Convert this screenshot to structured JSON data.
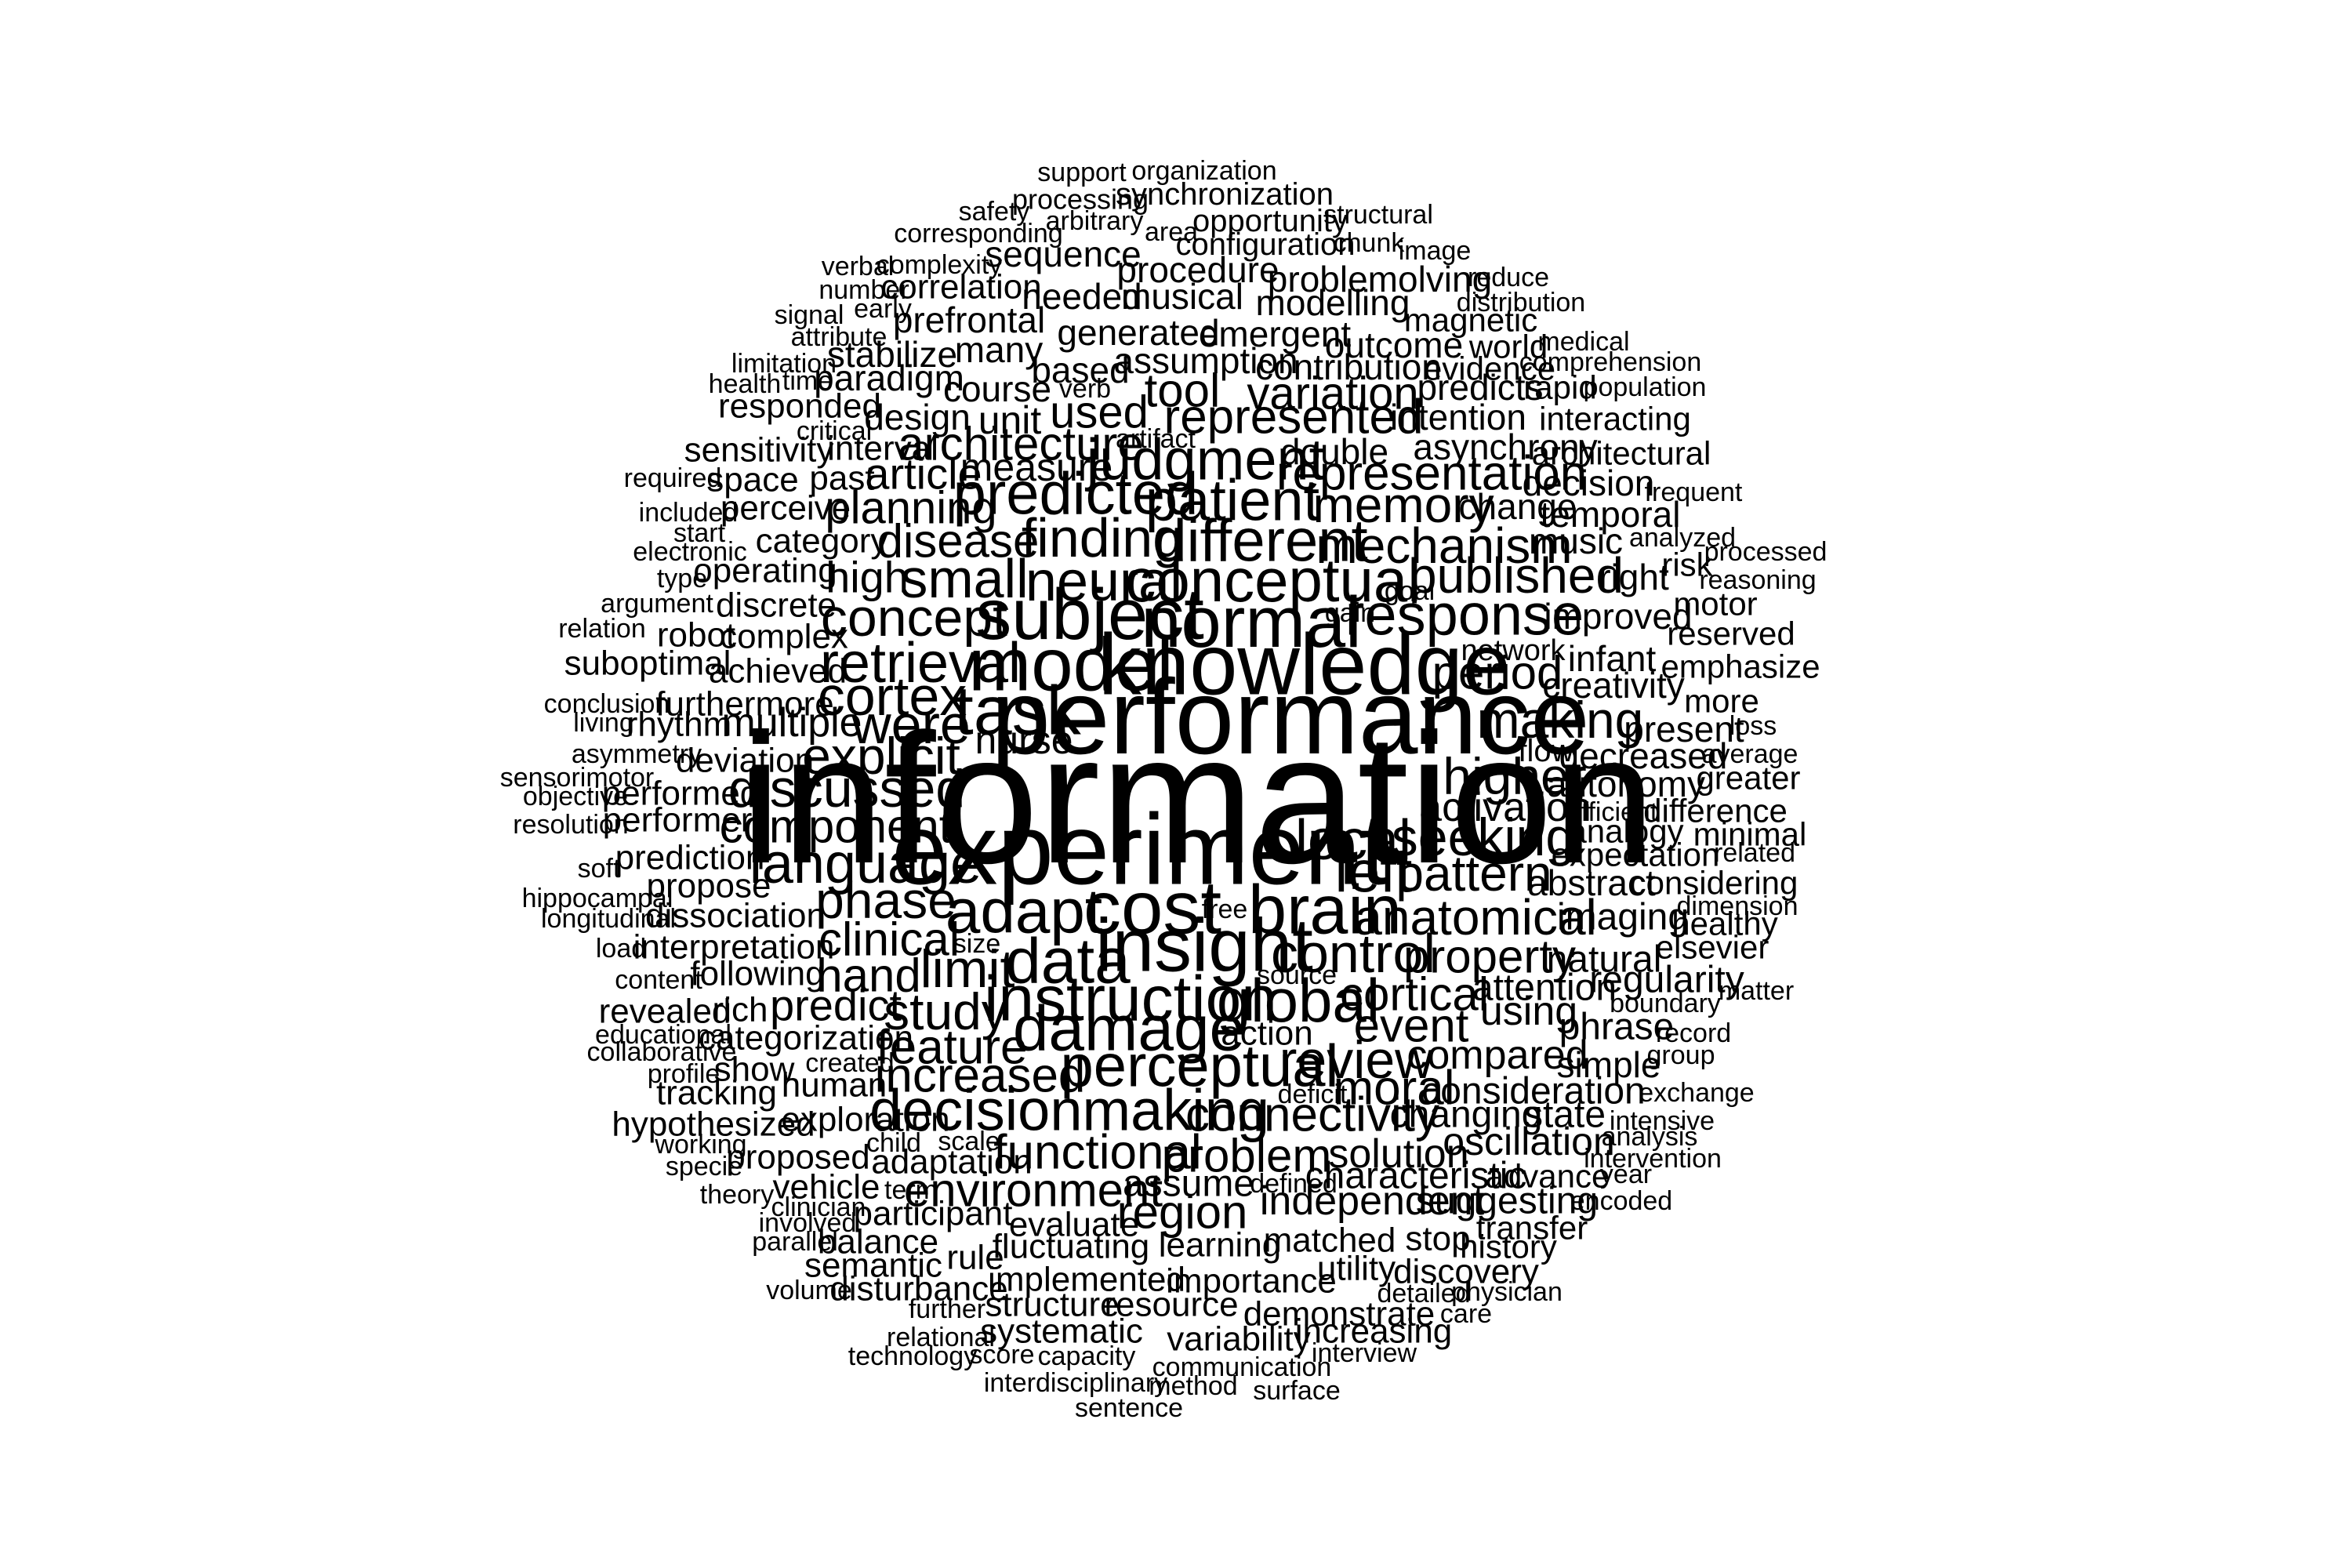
{
  "text_color": "#000000",
  "background": "#ffffff",
  "words": [
    {
      "text": "information",
      "weight": 9.5
    },
    {
      "text": "performance",
      "weight": 6.5
    },
    {
      "text": "experiment",
      "weight": 6.2
    },
    {
      "text": "knowledge",
      "weight": 5.4
    },
    {
      "text": "model",
      "weight": 4.5
    },
    {
      "text": "insight",
      "weight": 4.4
    },
    {
      "text": "cost",
      "weight": 4.4
    },
    {
      "text": "subject",
      "weight": 4.3
    },
    {
      "text": "normal",
      "weight": 4.3
    },
    {
      "text": "task",
      "weight": 4.2
    },
    {
      "text": "brain",
      "weight": 4.2
    },
    {
      "text": "damage",
      "weight": 3.9
    },
    {
      "text": "instruction",
      "weight": 3.9
    },
    {
      "text": "data",
      "weight": 3.9
    },
    {
      "text": "adapt",
      "weight": 3.8
    },
    {
      "text": "conceptual",
      "weight": 3.7
    },
    {
      "text": "perceptual",
      "weight": 3.7
    },
    {
      "text": "global",
      "weight": 3.7
    },
    {
      "text": "decisionmaking",
      "weight": 3.6
    },
    {
      "text": "different",
      "weight": 3.6
    },
    {
      "text": "predicted",
      "weight": 3.6
    },
    {
      "text": "judgment",
      "weight": 3.6
    },
    {
      "text": "response",
      "weight": 3.6
    },
    {
      "text": "retrieval",
      "weight": 3.5
    },
    {
      "text": "language",
      "weight": 3.5
    },
    {
      "text": "left",
      "weight": 3.5
    },
    {
      "text": "local",
      "weight": 3.5
    },
    {
      "text": "patient",
      "weight": 3.5
    },
    {
      "text": "neural",
      "weight": 3.5
    },
    {
      "text": "finding",
      "weight": 3.4
    },
    {
      "text": "small",
      "weight": 3.4
    },
    {
      "text": "control",
      "weight": 3.4
    },
    {
      "text": "cortex",
      "weight": 3.4
    },
    {
      "text": "were",
      "weight": 3.4
    },
    {
      "text": "concept",
      "weight": 3.3
    },
    {
      "text": "discussed",
      "weight": 3.3
    },
    {
      "text": "seeking",
      "weight": 3.3
    },
    {
      "text": "limit",
      "weight": 3.3
    },
    {
      "text": "review",
      "weight": 3.3
    },
    {
      "text": "higher",
      "weight": 3.2
    },
    {
      "text": "explicit",
      "weight": 3.2
    },
    {
      "text": "phase",
      "weight": 3.2
    },
    {
      "text": "study",
      "weight": 3.2
    },
    {
      "text": "making",
      "weight": 3.2
    },
    {
      "text": "mechanism",
      "weight": 3.1
    },
    {
      "text": "memory",
      "weight": 3.1
    },
    {
      "text": "published",
      "weight": 3.1
    },
    {
      "text": "pattern",
      "weight": 3.1
    },
    {
      "text": "anatomical",
      "weight": 3.1
    },
    {
      "text": "connectivity",
      "weight": 3.1
    },
    {
      "text": "moral",
      "weight": 3.1
    },
    {
      "text": "functional",
      "weight": 3.1
    },
    {
      "text": "feature",
      "weight": 3.1
    },
    {
      "text": "increased",
      "weight": 3.1
    },
    {
      "text": "represented",
      "weight": 3.0
    },
    {
      "text": "representation",
      "weight": 3.0
    },
    {
      "text": "clinical",
      "weight": 3.0
    },
    {
      "text": "hand",
      "weight": 3.0
    },
    {
      "text": "period",
      "weight": 3.0
    },
    {
      "text": "disease",
      "weight": 3.0
    },
    {
      "text": "architecture",
      "weight": 3.0
    },
    {
      "text": "tool",
      "weight": 3.0
    },
    {
      "text": "component",
      "weight": 3.0
    },
    {
      "text": "cortical",
      "weight": 3.0
    },
    {
      "text": "event",
      "weight": 3.0
    },
    {
      "text": "property",
      "weight": 3.0
    },
    {
      "text": "problem",
      "weight": 3.0
    },
    {
      "text": "environment",
      "weight": 3.0
    },
    {
      "text": "region",
      "weight": 3.0
    },
    {
      "text": "variation",
      "weight": 3.0
    },
    {
      "text": "used",
      "weight": 3.0
    },
    {
      "text": "planning",
      "weight": 3.0
    },
    {
      "text": "predict",
      "weight": 2.9
    },
    {
      "text": "article",
      "weight": 2.9
    },
    {
      "text": "high",
      "weight": 2.9
    },
    {
      "text": "multiple",
      "weight": 2.8
    },
    {
      "text": "nurse",
      "weight": 2.8
    },
    {
      "text": "activation",
      "weight": 2.8
    },
    {
      "text": "compared",
      "weight": 2.8
    },
    {
      "text": "solution",
      "weight": 2.8
    },
    {
      "text": "independent",
      "weight": 2.8
    },
    {
      "text": "using",
      "weight": 2.8
    },
    {
      "text": "oscillation",
      "weight": 2.7
    },
    {
      "text": "measure",
      "weight": 2.7
    },
    {
      "text": "unit",
      "weight": 2.7
    },
    {
      "text": "attention",
      "weight": 2.7
    },
    {
      "text": "consideration",
      "weight": 2.7
    },
    {
      "text": "changing",
      "weight": 2.7
    },
    {
      "text": "state",
      "weight": 2.7
    },
    {
      "text": "characteristic",
      "weight": 2.7
    },
    {
      "text": "suggesting",
      "weight": 2.7
    },
    {
      "text": "assume",
      "weight": 2.7
    },
    {
      "text": "imaging",
      "weight": 2.7
    },
    {
      "text": "natural",
      "weight": 2.7
    },
    {
      "text": "regularity",
      "weight": 2.7
    },
    {
      "text": "phrase",
      "weight": 2.7
    },
    {
      "text": "simple",
      "weight": 2.6
    },
    {
      "text": "abstract",
      "weight": 2.6
    },
    {
      "text": "autonomy",
      "weight": 2.6
    },
    {
      "text": "decreased",
      "weight": 2.6
    },
    {
      "text": "present",
      "weight": 2.6
    },
    {
      "text": "improved",
      "weight": 2.6
    },
    {
      "text": "infant",
      "weight": 2.6
    },
    {
      "text": "creativity",
      "weight": 2.6
    },
    {
      "text": "music",
      "weight": 2.6
    },
    {
      "text": "right",
      "weight": 2.6
    },
    {
      "text": "temporal",
      "weight": 2.6
    },
    {
      "text": "change",
      "weight": 2.6
    },
    {
      "text": "decision",
      "weight": 2.6
    },
    {
      "text": "asynchrony",
      "weight": 2.6
    },
    {
      "text": "double",
      "weight": 2.6
    },
    {
      "text": "intention",
      "weight": 2.6
    },
    {
      "text": "predicts",
      "weight": 2.6
    },
    {
      "text": "outcome",
      "weight": 2.6
    },
    {
      "text": "contribution",
      "weight": 2.6
    },
    {
      "text": "assumption",
      "weight": 2.6
    },
    {
      "text": "generated",
      "weight": 2.6
    },
    {
      "text": "emergent",
      "weight": 2.6
    },
    {
      "text": "modelling",
      "weight": 2.6
    },
    {
      "text": "problemolving",
      "weight": 2.6
    },
    {
      "text": "procedure",
      "weight": 2.6
    },
    {
      "text": "musical",
      "weight": 2.6
    },
    {
      "text": "needed",
      "weight": 2.6
    },
    {
      "text": "sequence",
      "weight": 2.6
    },
    {
      "text": "based",
      "weight": 2.6
    },
    {
      "text": "many",
      "weight": 2.6
    },
    {
      "text": "course",
      "weight": 2.6
    },
    {
      "text": "design",
      "weight": 2.6
    },
    {
      "text": "paradigm",
      "weight": 2.6
    },
    {
      "text": "stabilize",
      "weight": 2.6
    },
    {
      "text": "prefrontal",
      "weight": 2.6
    },
    {
      "text": "correlation",
      "weight": 2.5
    },
    {
      "text": "interval",
      "weight": 2.5
    },
    {
      "text": "past",
      "weight": 2.5
    },
    {
      "text": "space",
      "weight": 2.5
    },
    {
      "text": "sensitivity",
      "weight": 2.5
    },
    {
      "text": "responded",
      "weight": 2.5
    },
    {
      "text": "perceive",
      "weight": 2.5
    },
    {
      "text": "category",
      "weight": 2.5
    },
    {
      "text": "operating",
      "weight": 2.5
    },
    {
      "text": "discrete",
      "weight": 2.5
    },
    {
      "text": "complex",
      "weight": 2.5
    },
    {
      "text": "achieved",
      "weight": 2.5
    },
    {
      "text": "robot",
      "weight": 2.5
    },
    {
      "text": "suboptimal",
      "weight": 2.5
    },
    {
      "text": "furthermore",
      "weight": 2.5
    },
    {
      "text": "rhythm",
      "weight": 2.5
    },
    {
      "text": "deviation",
      "weight": 2.5
    },
    {
      "text": "performed",
      "weight": 2.5
    },
    {
      "text": "performer",
      "weight": 2.5
    },
    {
      "text": "prediction",
      "weight": 2.5
    },
    {
      "text": "propose",
      "weight": 2.5
    },
    {
      "text": "dissociation",
      "weight": 2.5
    },
    {
      "text": "interpretation",
      "weight": 2.5
    },
    {
      "text": "following",
      "weight": 2.5
    },
    {
      "text": "rich",
      "weight": 2.5
    },
    {
      "text": "revealed",
      "weight": 2.5
    },
    {
      "text": "categorization",
      "weight": 2.5
    },
    {
      "text": "show",
      "weight": 2.5
    },
    {
      "text": "human",
      "weight": 2.5
    },
    {
      "text": "tracking",
      "weight": 2.5
    },
    {
      "text": "exploration",
      "weight": 2.5
    },
    {
      "text": "hypothesized",
      "weight": 2.5
    },
    {
      "text": "proposed",
      "weight": 2.5
    },
    {
      "text": "adaptation",
      "weight": 2.5
    },
    {
      "text": "vehicle",
      "weight": 2.5
    },
    {
      "text": "participant",
      "weight": 2.5
    },
    {
      "text": "evaluate",
      "weight": 2.5
    },
    {
      "text": "fluctuating",
      "weight": 2.5
    },
    {
      "text": "rule",
      "weight": 2.5
    },
    {
      "text": "semantic",
      "weight": 2.5
    },
    {
      "text": "balance",
      "weight": 2.5
    },
    {
      "text": "disturbance",
      "weight": 2.5
    },
    {
      "text": "implemented",
      "weight": 2.5
    },
    {
      "text": "structure",
      "weight": 2.5
    },
    {
      "text": "systematic",
      "weight": 2.5
    },
    {
      "text": "resource",
      "weight": 2.5
    },
    {
      "text": "importance",
      "weight": 2.5
    },
    {
      "text": "learning",
      "weight": 2.5
    },
    {
      "text": "matched",
      "weight": 2.5
    },
    {
      "text": "utility",
      "weight": 2.5
    },
    {
      "text": "stop",
      "weight": 2.5
    },
    {
      "text": "discovery",
      "weight": 2.5
    },
    {
      "text": "demonstrate",
      "weight": 2.5
    },
    {
      "text": "increasing",
      "weight": 2.5
    },
    {
      "text": "variability",
      "weight": 2.5
    },
    {
      "text": "action",
      "weight": 2.5
    },
    {
      "text": "advance",
      "weight": 2.4
    },
    {
      "text": "transfer",
      "weight": 2.4
    },
    {
      "text": "history",
      "weight": 2.4
    },
    {
      "text": "considering",
      "weight": 2.4
    },
    {
      "text": "expectation",
      "weight": 2.4
    },
    {
      "text": "analogy",
      "weight": 2.4
    },
    {
      "text": "healthy",
      "weight": 2.4
    },
    {
      "text": "elsevier",
      "weight": 2.4
    },
    {
      "text": "emphasize",
      "weight": 2.4
    },
    {
      "text": "reserved",
      "weight": 2.4
    },
    {
      "text": "motor",
      "weight": 2.4
    },
    {
      "text": "risk",
      "weight": 2.4
    },
    {
      "text": "more",
      "weight": 2.4
    },
    {
      "text": "difference",
      "weight": 2.4
    },
    {
      "text": "minimal",
      "weight": 2.4
    },
    {
      "text": "greater",
      "weight": 2.4
    },
    {
      "text": "interacting",
      "weight": 2.4
    },
    {
      "text": "architectural",
      "weight": 2.4
    },
    {
      "text": "rapid",
      "weight": 2.4
    },
    {
      "text": "evidence",
      "weight": 2.4
    },
    {
      "text": "world",
      "weight": 2.4
    },
    {
      "text": "magnetic",
      "weight": 2.4
    },
    {
      "text": "synchronization",
      "weight": 2.4
    },
    {
      "text": "opportunity",
      "weight": 2.4
    },
    {
      "text": "configuration",
      "weight": 2.4
    },
    {
      "text": "flow",
      "weight": 2.4
    },
    {
      "text": "network",
      "weight": 2.3
    },
    {
      "text": "processing",
      "weight": 2.3
    },
    {
      "text": "support",
      "weight": 2.3
    },
    {
      "text": "organization",
      "weight": 2.3
    },
    {
      "text": "structural",
      "weight": 2.2
    },
    {
      "text": "safety",
      "weight": 2.2
    },
    {
      "text": "arbitrary",
      "weight": 2.2
    },
    {
      "text": "corresponding",
      "weight": 2.2
    },
    {
      "text": "area",
      "weight": 2.2
    },
    {
      "text": "chunk",
      "weight": 2.2
    },
    {
      "text": "image",
      "weight": 2.2
    },
    {
      "text": "verbal",
      "weight": 2.2
    },
    {
      "text": "complexity",
      "weight": 2.2
    },
    {
      "text": "number",
      "weight": 2.2
    },
    {
      "text": "early",
      "weight": 2.2
    },
    {
      "text": "signal",
      "weight": 2.2
    },
    {
      "text": "attribute",
      "weight": 2.2
    },
    {
      "text": "reduce",
      "weight": 2.2
    },
    {
      "text": "distribution",
      "weight": 2.2
    },
    {
      "text": "medical",
      "weight": 2.2
    },
    {
      "text": "comprehension",
      "weight": 2.2
    },
    {
      "text": "population",
      "weight": 2.2
    },
    {
      "text": "limitation",
      "weight": 2.2
    },
    {
      "text": "health",
      "weight": 2.2
    },
    {
      "text": "time",
      "weight": 2.2
    },
    {
      "text": "verb",
      "weight": 2.2
    },
    {
      "text": "critical",
      "weight": 2.2
    },
    {
      "text": "artifact",
      "weight": 2.2
    },
    {
      "text": "required",
      "weight": 2.2
    },
    {
      "text": "frequent",
      "weight": 2.2
    },
    {
      "text": "included",
      "weight": 2.2
    },
    {
      "text": "start",
      "weight": 2.2
    },
    {
      "text": "electronic",
      "weight": 2.2
    },
    {
      "text": "analyzed",
      "weight": 2.2
    },
    {
      "text": "processed",
      "weight": 2.2
    },
    {
      "text": "type",
      "weight": 2.2
    },
    {
      "text": "goal",
      "weight": 2.2
    },
    {
      "text": "reasoning",
      "weight": 2.2
    },
    {
      "text": "argument",
      "weight": 2.2
    },
    {
      "text": "gain",
      "weight": 2.2
    },
    {
      "text": "relation",
      "weight": 2.2
    },
    {
      "text": "conclusion",
      "weight": 2.2
    },
    {
      "text": "living",
      "weight": 2.2
    },
    {
      "text": "asymmetry",
      "weight": 2.2
    },
    {
      "text": "sensorimotor",
      "weight": 2.2
    },
    {
      "text": "objective",
      "weight": 2.2
    },
    {
      "text": "resolution",
      "weight": 2.2
    },
    {
      "text": "loss",
      "weight": 2.2
    },
    {
      "text": "average",
      "weight": 2.2
    },
    {
      "text": "efficient",
      "weight": 2.2
    },
    {
      "text": "related",
      "weight": 2.2
    },
    {
      "text": "soft",
      "weight": 2.2
    },
    {
      "text": "hippocampal",
      "weight": 2.2
    },
    {
      "text": "longitudinal",
      "weight": 2.2
    },
    {
      "text": "free",
      "weight": 2.2
    },
    {
      "text": "dimension",
      "weight": 2.2
    },
    {
      "text": "load",
      "weight": 2.2
    },
    {
      "text": "size",
      "weight": 2.2
    },
    {
      "text": "content",
      "weight": 2.2
    },
    {
      "text": "source",
      "weight": 2.2
    },
    {
      "text": "boundary",
      "weight": 2.2
    },
    {
      "text": "matter",
      "weight": 2.2
    },
    {
      "text": "educational",
      "weight": 2.2
    },
    {
      "text": "collaborative",
      "weight": 2.2
    },
    {
      "text": "record",
      "weight": 2.2
    },
    {
      "text": "group",
      "weight": 2.2
    },
    {
      "text": "profile",
      "weight": 2.2
    },
    {
      "text": "created",
      "weight": 2.2
    },
    {
      "text": "deficit",
      "weight": 2.2
    },
    {
      "text": "exchange",
      "weight": 2.2
    },
    {
      "text": "intensive",
      "weight": 2.2
    },
    {
      "text": "analysis",
      "weight": 2.2
    },
    {
      "text": "working",
      "weight": 2.2
    },
    {
      "text": "child",
      "weight": 2.2
    },
    {
      "text": "scale",
      "weight": 2.2
    },
    {
      "text": "specie",
      "weight": 2.2
    },
    {
      "text": "intervention",
      "weight": 2.2
    },
    {
      "text": "year",
      "weight": 2.2
    },
    {
      "text": "defined",
      "weight": 2.2
    },
    {
      "text": "theory",
      "weight": 2.2
    },
    {
      "text": "term",
      "weight": 2.2
    },
    {
      "text": "clinician",
      "weight": 2.2
    },
    {
      "text": "involved",
      "weight": 2.2
    },
    {
      "text": "encoded",
      "weight": 2.2
    },
    {
      "text": "parallel",
      "weight": 2.2
    },
    {
      "text": "volume",
      "weight": 2.2
    },
    {
      "text": "further",
      "weight": 2.2
    },
    {
      "text": "detailed",
      "weight": 2.2
    },
    {
      "text": "physician",
      "weight": 2.2
    },
    {
      "text": "care",
      "weight": 2.2
    },
    {
      "text": "relational",
      "weight": 2.2
    },
    {
      "text": "technology",
      "weight": 2.2
    },
    {
      "text": "score",
      "weight": 2.2
    },
    {
      "text": "capacity",
      "weight": 2.2
    },
    {
      "text": "interview",
      "weight": 2.2
    },
    {
      "text": "communication",
      "weight": 2.2
    },
    {
      "text": "interdisciplinary",
      "weight": 2.2
    },
    {
      "text": "method",
      "weight": 2.2
    },
    {
      "text": "surface",
      "weight": 2.2
    },
    {
      "text": "sentence",
      "weight": 2.2
    }
  ]
}
